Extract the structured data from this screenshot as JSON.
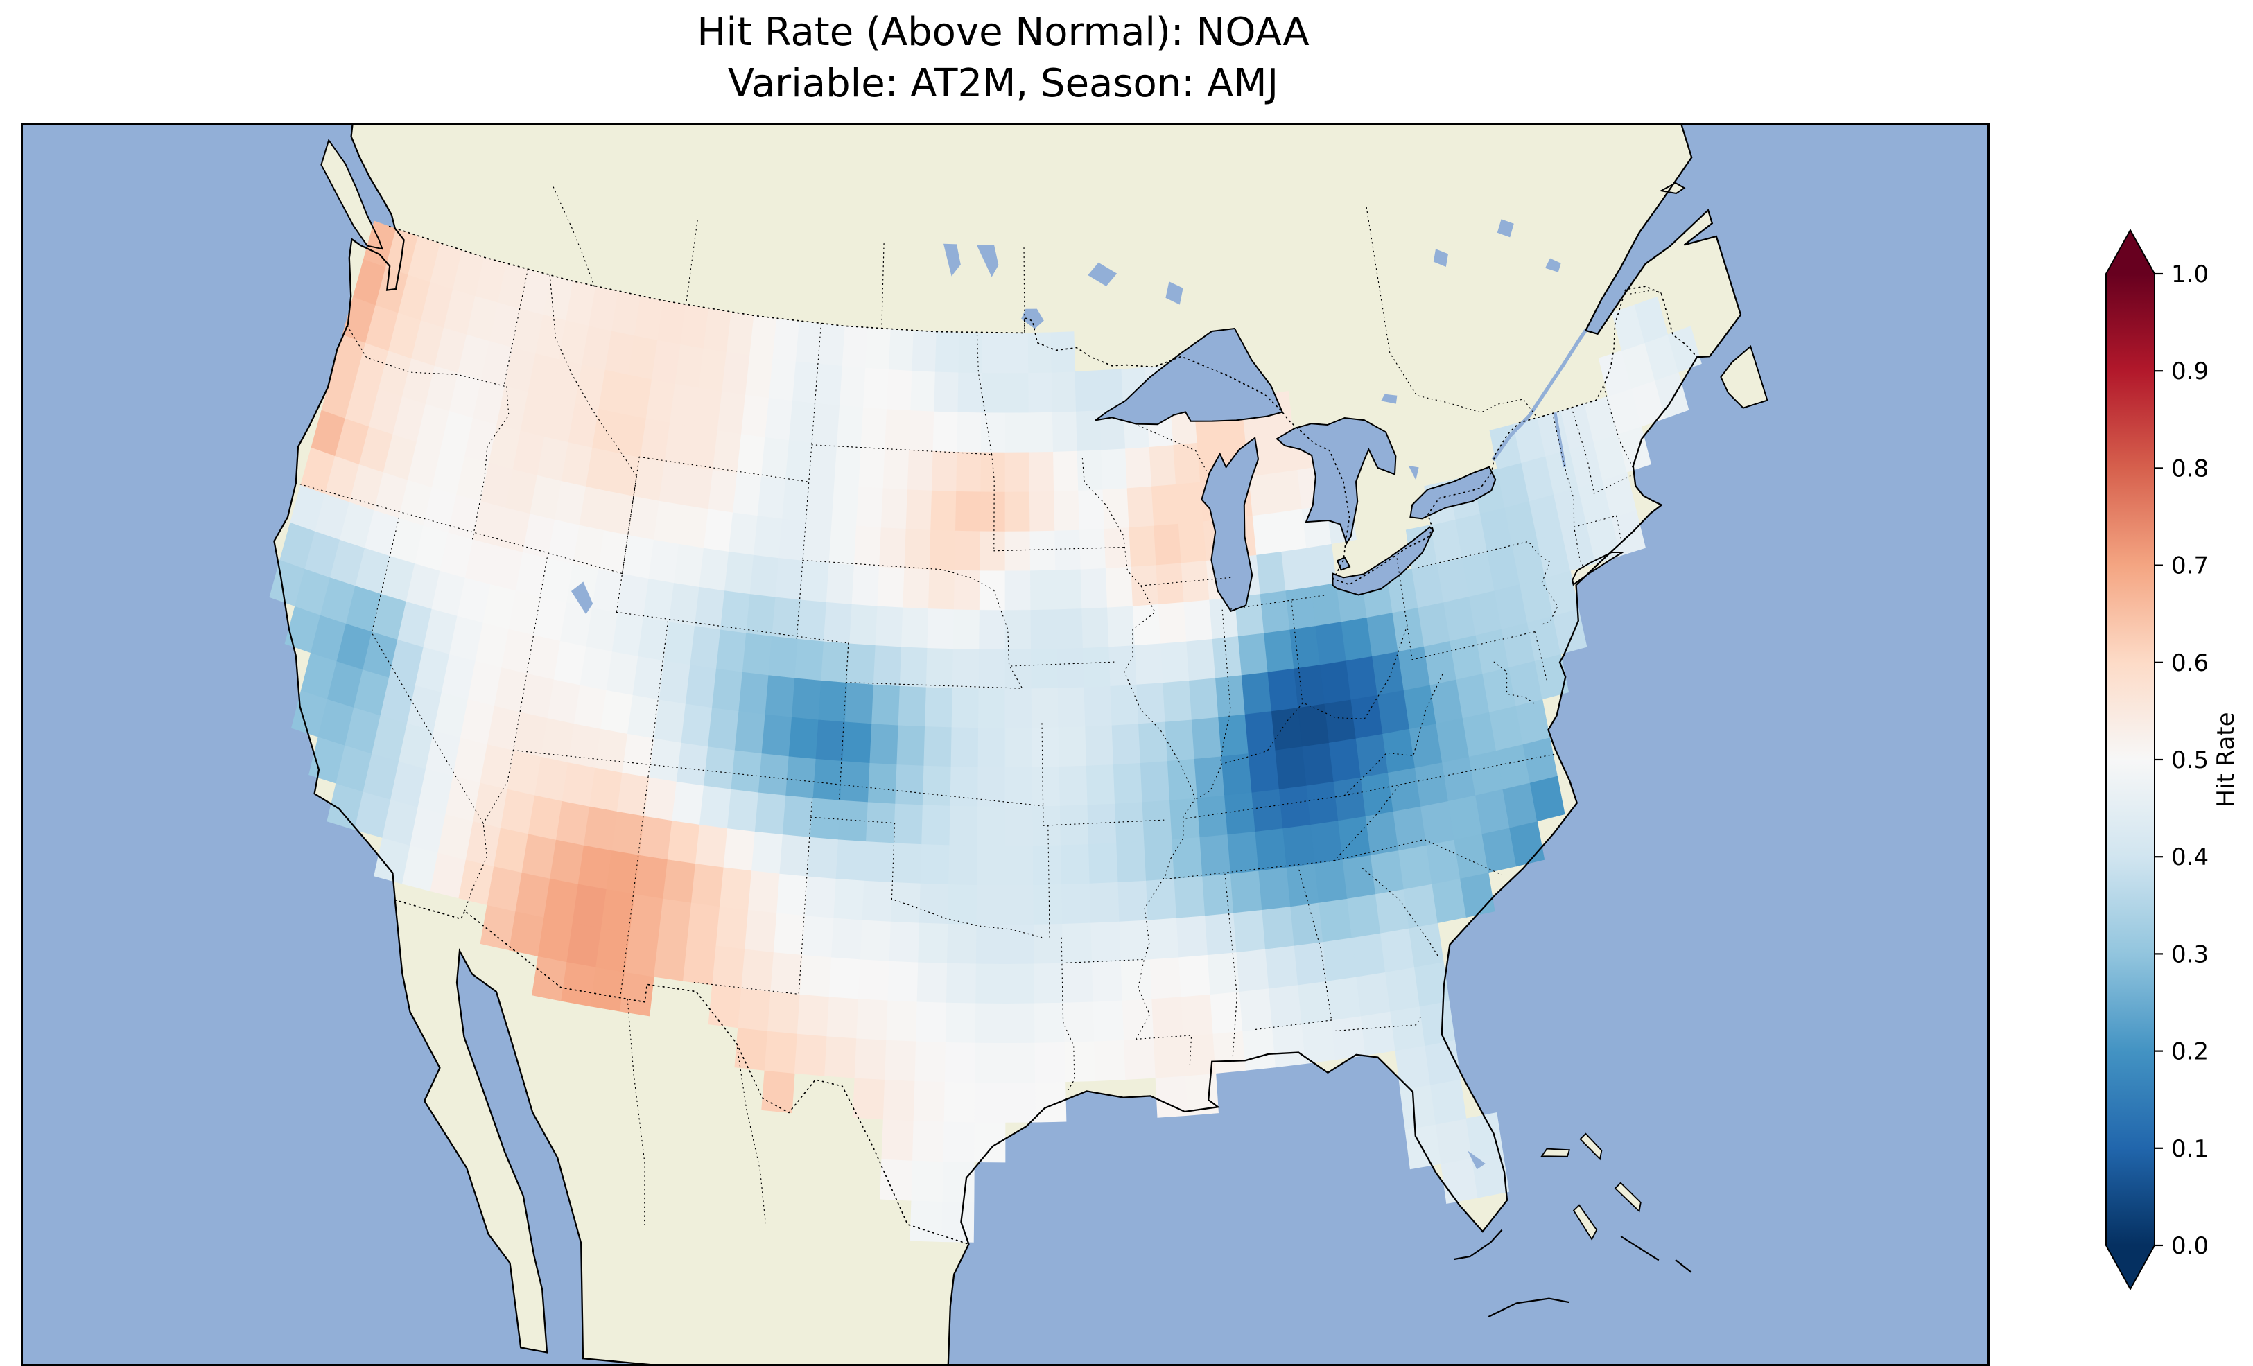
{
  "title": {
    "line1": "Hit Rate (Above Normal): NOAA",
    "line2": "Variable: AT2M, Season: AMJ"
  },
  "map_colors": {
    "ocean": "#92afd7",
    "land": "#efefdb",
    "coastline": "#000000",
    "border_style": "dotted"
  },
  "colorbar": {
    "label": "Hit Rate",
    "ticks": [
      "1.0",
      "0.9",
      "0.8",
      "0.7",
      "0.6",
      "0.5",
      "0.4",
      "0.3",
      "0.2",
      "0.1",
      "0.0"
    ],
    "vmin": 0.0,
    "vmax": 1.0,
    "extend": "both",
    "colormap": "RdBu_r",
    "anchors": [
      "#053061",
      "#2166ac",
      "#4393c3",
      "#92c5de",
      "#d1e5f0",
      "#f7f7f7",
      "#fddbc7",
      "#f4a582",
      "#d6604d",
      "#b2182b",
      "#67001f"
    ]
  },
  "chart_data": {
    "type": "heatmap",
    "title": "Hit Rate (Above Normal): NOAA",
    "subtitle": "Variable: AT2M, Season: AMJ",
    "source": "NOAA",
    "variable": "AT2M",
    "season": "AMJ",
    "metric": "Hit Rate (Above Normal)",
    "region": "Continental United States",
    "legend_label": "Hit Rate",
    "value_range": [
      0.0,
      1.0
    ],
    "grid": {
      "lon_centers_start": -124,
      "lon_step": 2,
      "n_cols": 29,
      "lat_centers_start": 49,
      "lat_step": -2,
      "n_rows": 13,
      "note": "rows ordered north to south; null = outside US landmask"
    },
    "values": [
      [
        0.68,
        0.58,
        0.55,
        0.55,
        0.52,
        0.55,
        0.55,
        0.57,
        0.55,
        0.5,
        0.47,
        0.5,
        0.45,
        0.42,
        0.45,
        0.42,
        null,
        null,
        null,
        null,
        null,
        null,
        null,
        null,
        null,
        null,
        null,
        null,
        null
      ],
      [
        0.7,
        0.6,
        0.55,
        0.52,
        0.55,
        0.55,
        0.58,
        0.55,
        0.55,
        0.5,
        0.45,
        0.5,
        0.52,
        0.45,
        0.42,
        0.45,
        0.4,
        0.45,
        null,
        null,
        null,
        null,
        null,
        null,
        null,
        null,
        null,
        0.45,
        0.42
      ],
      [
        0.62,
        0.55,
        0.52,
        0.5,
        0.55,
        0.55,
        0.6,
        0.55,
        0.55,
        0.48,
        0.45,
        0.5,
        0.52,
        0.62,
        0.65,
        0.55,
        0.48,
        0.58,
        0.6,
        null,
        0.55,
        null,
        null,
        null,
        null,
        0.42,
        0.45,
        0.5,
        0.45
      ],
      [
        0.7,
        0.6,
        0.52,
        0.5,
        0.55,
        0.5,
        0.52,
        0.5,
        0.5,
        0.45,
        0.45,
        0.5,
        0.55,
        0.6,
        0.5,
        0.45,
        0.5,
        0.63,
        0.58,
        null,
        0.48,
        0.42,
        null,
        0.4,
        0.35,
        0.4,
        0.45,
        0.48,
        null
      ],
      [
        0.35,
        0.4,
        0.48,
        0.5,
        0.5,
        0.5,
        0.48,
        0.45,
        0.4,
        0.32,
        0.35,
        0.4,
        0.42,
        0.45,
        0.42,
        0.4,
        0.42,
        0.48,
        0.45,
        0.3,
        0.2,
        0.25,
        0.35,
        0.35,
        0.35,
        0.4,
        0.45,
        null,
        null
      ],
      [
        null,
        0.3,
        0.22,
        0.42,
        0.5,
        0.52,
        0.5,
        0.48,
        0.4,
        0.3,
        0.18,
        0.15,
        0.28,
        0.38,
        0.42,
        0.45,
        0.4,
        0.35,
        0.28,
        0.05,
        0.04,
        0.08,
        0.25,
        0.32,
        0.35,
        0.38,
        null,
        null,
        null
      ],
      [
        null,
        0.3,
        0.28,
        0.4,
        0.5,
        0.55,
        0.55,
        0.55,
        0.45,
        0.35,
        0.3,
        0.22,
        0.32,
        0.4,
        0.42,
        0.42,
        0.38,
        0.32,
        0.2,
        0.08,
        0.1,
        0.2,
        0.25,
        0.3,
        0.3,
        null,
        null,
        null,
        null
      ],
      [
        null,
        null,
        0.32,
        0.38,
        0.5,
        0.58,
        0.65,
        0.7,
        0.68,
        0.6,
        0.5,
        0.45,
        0.42,
        0.4,
        0.42,
        0.4,
        0.38,
        0.32,
        0.25,
        0.2,
        0.2,
        0.28,
        0.3,
        0.25,
        0.15,
        null,
        null,
        null,
        null
      ],
      [
        null,
        null,
        null,
        0.42,
        0.5,
        0.62,
        0.7,
        0.72,
        0.65,
        0.6,
        0.52,
        0.48,
        0.5,
        0.45,
        0.42,
        0.45,
        0.48,
        0.5,
        0.45,
        0.38,
        0.35,
        0.4,
        0.28,
        0.18,
        null,
        null,
        null,
        null,
        null
      ],
      [
        null,
        null,
        null,
        null,
        null,
        null,
        0.65,
        0.7,
        0.68,
        0.6,
        0.6,
        0.55,
        0.52,
        0.5,
        0.48,
        0.5,
        0.5,
        0.55,
        0.5,
        0.45,
        0.45,
        0.4,
        0.35,
        null,
        null,
        null,
        null,
        null,
        null
      ],
      [
        null,
        null,
        null,
        null,
        null,
        null,
        null,
        null,
        null,
        null,
        0.65,
        0.6,
        0.55,
        0.5,
        0.5,
        0.5,
        0.52,
        0.5,
        null,
        0.48,
        0.45,
        0.42,
        0.4,
        null,
        null,
        null,
        null,
        null,
        null
      ],
      [
        null,
        null,
        null,
        null,
        null,
        null,
        null,
        null,
        null,
        null,
        null,
        null,
        0.5,
        0.48,
        null,
        null,
        null,
        null,
        null,
        null,
        null,
        0.45,
        0.42,
        null,
        null,
        null,
        null,
        null,
        null
      ],
      [
        null,
        null,
        null,
        null,
        null,
        null,
        null,
        null,
        null,
        null,
        null,
        null,
        null,
        0.5,
        null,
        null,
        null,
        null,
        null,
        null,
        null,
        0.45,
        0.4,
        null,
        null,
        null,
        null,
        null,
        null
      ]
    ]
  }
}
